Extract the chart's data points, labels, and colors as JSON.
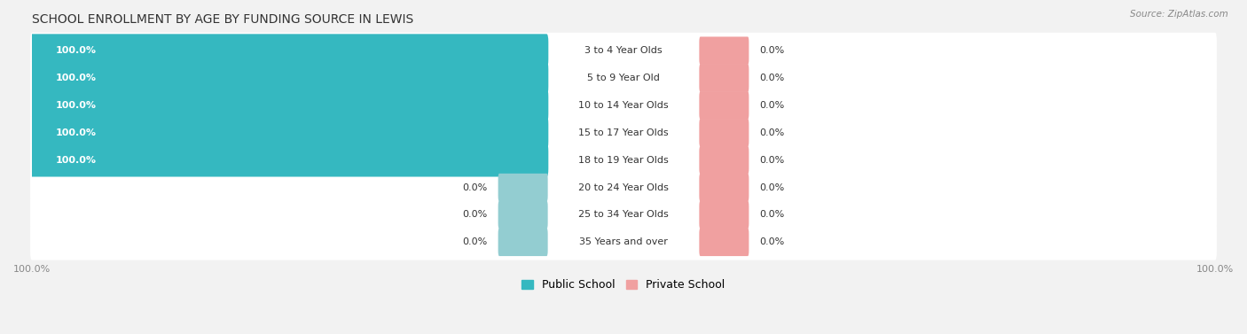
{
  "title": "SCHOOL ENROLLMENT BY AGE BY FUNDING SOURCE IN LEWIS",
  "source": "Source: ZipAtlas.com",
  "categories": [
    "3 to 4 Year Olds",
    "5 to 9 Year Old",
    "10 to 14 Year Olds",
    "15 to 17 Year Olds",
    "18 to 19 Year Olds",
    "20 to 24 Year Olds",
    "25 to 34 Year Olds",
    "35 Years and over"
  ],
  "public_values": [
    100.0,
    100.0,
    100.0,
    100.0,
    100.0,
    0.0,
    0.0,
    0.0
  ],
  "private_values": [
    0.0,
    0.0,
    0.0,
    0.0,
    0.0,
    0.0,
    0.0,
    0.0
  ],
  "public_color": "#35B8C0",
  "public_color_light": "#93CDD1",
  "private_color": "#F0A0A0",
  "bg_color": "#F2F2F2",
  "bar_bg_color": "#E8E8EE",
  "title_color": "#333333",
  "source_color": "#888888",
  "label_color": "#333333",
  "tick_color": "#888888",
  "title_fontsize": 10,
  "label_fontsize": 8,
  "tick_fontsize": 8,
  "legend_fontsize": 9,
  "bar_height": 0.62
}
